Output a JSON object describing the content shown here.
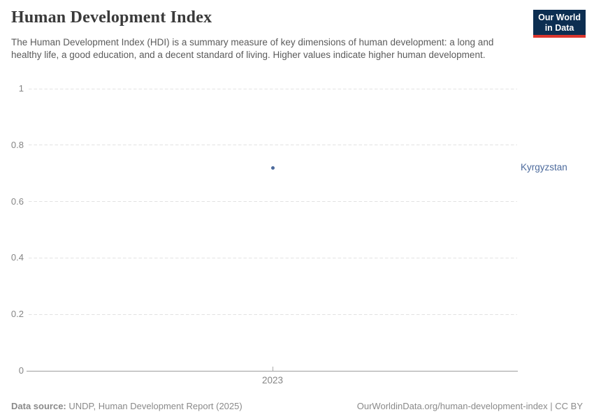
{
  "header": {
    "title": "Human Development Index",
    "subtitle": "The Human Development Index (HDI) is a summary measure of key dimensions of human development: a long and healthy life, a good education, and a decent standard of living. Higher values indicate higher human development."
  },
  "logo": {
    "line1": "Our World",
    "line2": "in Data",
    "bg_color": "#0c2e51",
    "accent_color": "#dc362d"
  },
  "chart_data": {
    "type": "scatter",
    "title": "Human Development Index",
    "series": [
      {
        "name": "Kyrgyzstan",
        "color": "#4C6A9C",
        "points": [
          {
            "x": 2023,
            "y": 0.72
          }
        ]
      }
    ],
    "xticks": [
      2023
    ],
    "yticks": [
      0,
      0.2,
      0.4,
      0.6,
      0.8,
      1
    ],
    "ylim": [
      0,
      1
    ],
    "xlabel": "",
    "ylabel": "",
    "grid": "horizontal-dashed",
    "gridline_color": "#e2e2e2",
    "axis_color": "#9e9e9e",
    "tick_label_color": "#858585"
  },
  "footer": {
    "source_label": "Data source:",
    "source_text": "UNDP, Human Development Report (2025)",
    "credit": "OurWorldinData.org/human-development-index | CC BY"
  }
}
